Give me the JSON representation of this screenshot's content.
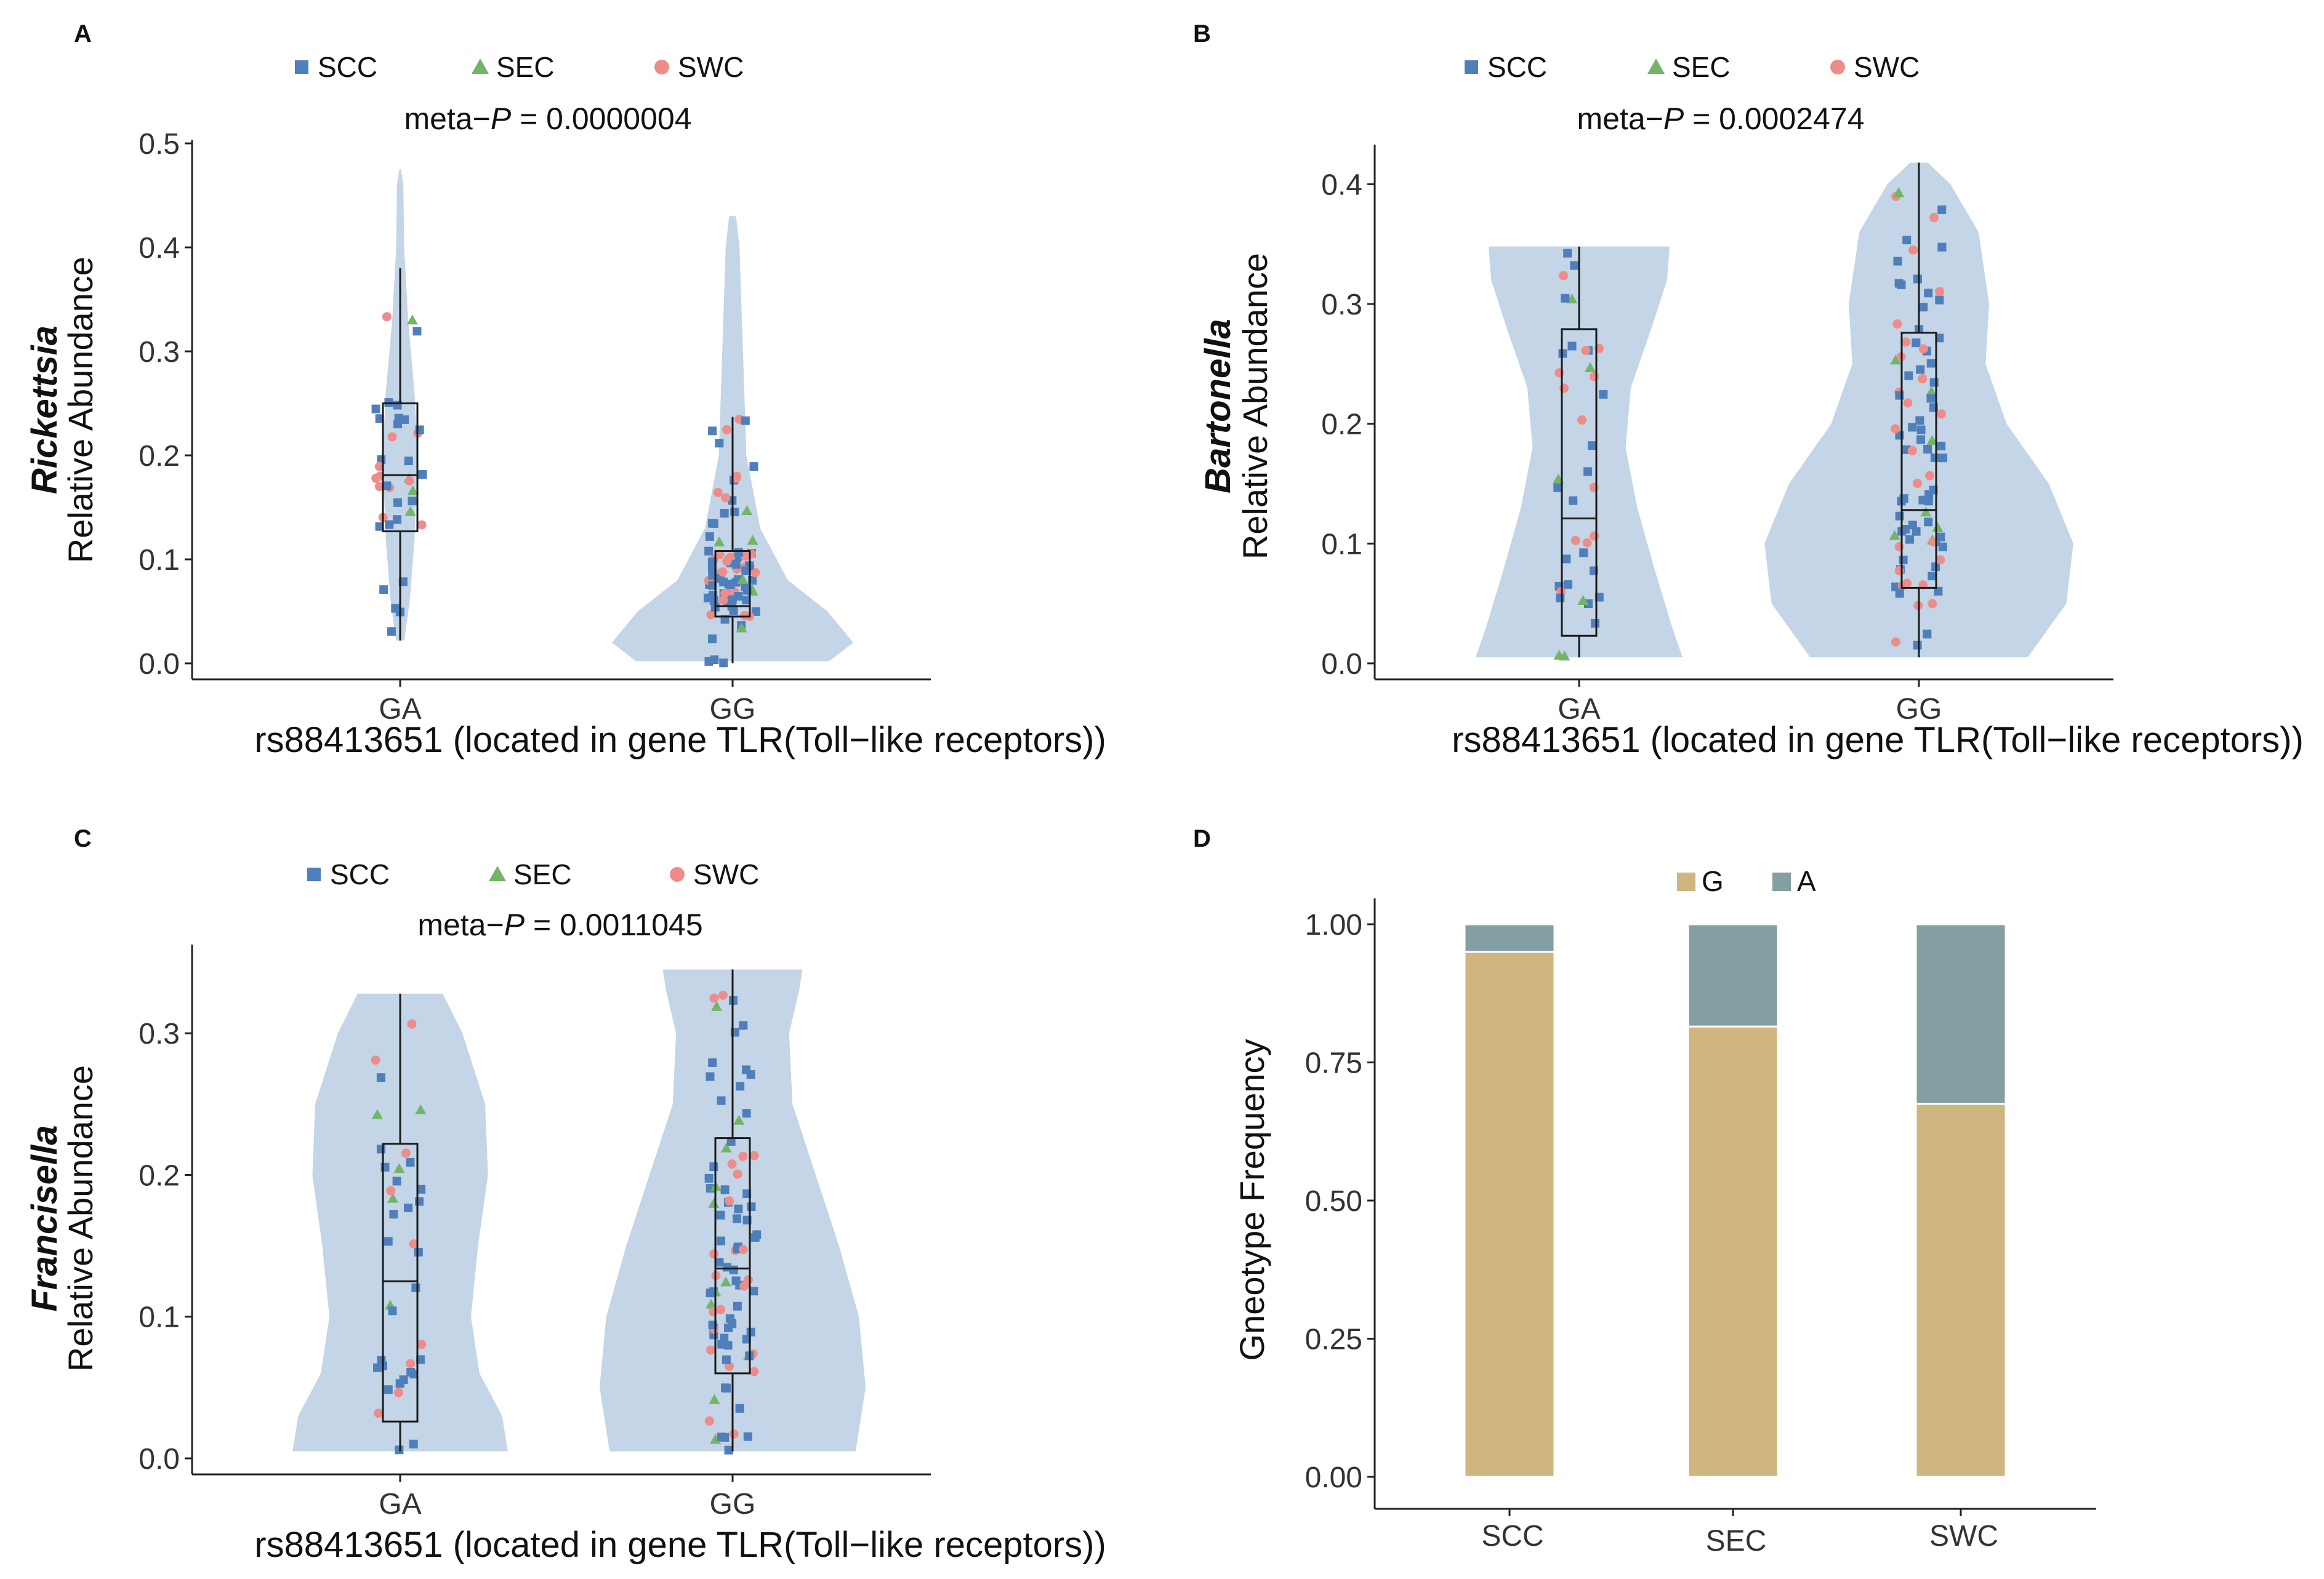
{
  "chart_data": [
    {
      "panel": "A",
      "type": "violin",
      "title_prefix": "meta−",
      "title_italic": "P",
      "title_suffix": " = 0.0000004",
      "ylabel_genus": "Rickettsia",
      "ylabel": "Relative Abundance",
      "xlabel": "rs88413651 (located in gene TLR(Toll−like receptors))",
      "categories": [
        "GA",
        "GG"
      ],
      "ylim": [
        0,
        0.5
      ],
      "yticks": [
        0.0,
        0.1,
        0.2,
        0.3,
        0.4,
        0.5
      ],
      "ytick_labels": [
        "0.0",
        "0.1",
        "0.2",
        "0.3",
        "0.4",
        "0.5"
      ],
      "legend": [
        {
          "label": "SCC",
          "shape": "square",
          "color": "#4f7fbb"
        },
        {
          "label": "SEC",
          "shape": "triangle",
          "color": "#72b566"
        },
        {
          "label": "SWC",
          "shape": "circle",
          "color": "#ee8c8a"
        }
      ],
      "boxes": [
        {
          "category": "GA",
          "min": 0.022,
          "q1": 0.127,
          "median": 0.181,
          "q3": 0.25,
          "max": 0.38
        },
        {
          "category": "GG",
          "min": 0.0,
          "q1": 0.045,
          "median": 0.055,
          "q3": 0.108,
          "max": 0.237
        }
      ],
      "violins": [
        {
          "category": "GA",
          "ymin": 0.022,
          "ymax": 0.475,
          "profile": [
            [
              0.022,
              0.05
            ],
            [
              0.06,
              0.12
            ],
            [
              0.12,
              0.18
            ],
            [
              0.2,
              0.22
            ],
            [
              0.26,
              0.18
            ],
            [
              0.33,
              0.1
            ],
            [
              0.4,
              0.05
            ],
            [
              0.46,
              0.04
            ],
            [
              0.475,
              0.01
            ]
          ]
        },
        {
          "category": "GG",
          "ymin": 0.002,
          "ymax": 0.43,
          "profile": [
            [
              0.002,
              0.56
            ],
            [
              0.02,
              0.7
            ],
            [
              0.05,
              0.55
            ],
            [
              0.08,
              0.32
            ],
            [
              0.13,
              0.16
            ],
            [
              0.2,
              0.08
            ],
            [
              0.3,
              0.06
            ],
            [
              0.4,
              0.04
            ],
            [
              0.43,
              0.02
            ]
          ]
        }
      ]
    },
    {
      "panel": "B",
      "type": "violin",
      "title_prefix": "meta−",
      "title_italic": "P",
      "title_suffix": " = 0.0002474",
      "ylabel_genus": "Bartonella",
      "ylabel": "Relative Abundance",
      "xlabel": "rs88413651 (located in gene TLR(Toll−like receptors))",
      "categories": [
        "GA",
        "GG"
      ],
      "ylim": [
        0,
        0.43
      ],
      "yticks": [
        0.0,
        0.1,
        0.2,
        0.3,
        0.4
      ],
      "ytick_labels": [
        "0.0",
        "0.1",
        "0.2",
        "0.3",
        "0.4"
      ],
      "legend": [
        {
          "label": "SCC",
          "shape": "square",
          "color": "#4f7fbb"
        },
        {
          "label": "SEC",
          "shape": "triangle",
          "color": "#72b566"
        },
        {
          "label": "SWC",
          "shape": "circle",
          "color": "#ee8c8a"
        }
      ],
      "boxes": [
        {
          "category": "GA",
          "min": 0.005,
          "q1": 0.023,
          "median": 0.121,
          "q3": 0.279,
          "max": 0.348
        },
        {
          "category": "GG",
          "min": 0.005,
          "q1": 0.063,
          "median": 0.128,
          "q3": 0.276,
          "max": 0.418
        }
      ],
      "violins": [
        {
          "category": "GA",
          "ymin": 0.005,
          "ymax": 0.348,
          "profile": [
            [
              0.005,
              0.8
            ],
            [
              0.03,
              0.72
            ],
            [
              0.08,
              0.58
            ],
            [
              0.13,
              0.45
            ],
            [
              0.18,
              0.36
            ],
            [
              0.23,
              0.4
            ],
            [
              0.28,
              0.56
            ],
            [
              0.32,
              0.68
            ],
            [
              0.348,
              0.7
            ]
          ]
        },
        {
          "category": "GG",
          "ymin": 0.005,
          "ymax": 0.418,
          "profile": [
            [
              0.005,
              0.62
            ],
            [
              0.05,
              0.84
            ],
            [
              0.1,
              0.88
            ],
            [
              0.15,
              0.74
            ],
            [
              0.2,
              0.5
            ],
            [
              0.25,
              0.38
            ],
            [
              0.3,
              0.4
            ],
            [
              0.36,
              0.34
            ],
            [
              0.4,
              0.18
            ],
            [
              0.418,
              0.05
            ]
          ]
        }
      ]
    },
    {
      "panel": "C",
      "type": "violin",
      "title_prefix": "meta−",
      "title_italic": "P",
      "title_suffix": " = 0.0011045",
      "ylabel_genus": "Francisella",
      "ylabel": "Relative Abundance",
      "xlabel": "rs88413651 (located in gene TLR(Toll−like receptors))",
      "categories": [
        "GA",
        "GG"
      ],
      "ylim": [
        0,
        0.36
      ],
      "yticks": [
        0.0,
        0.1,
        0.2,
        0.3
      ],
      "ytick_labels": [
        "0.0",
        "0.1",
        "0.2",
        "0.3"
      ],
      "legend": [
        {
          "label": "SCC",
          "shape": "square",
          "color": "#4f7fbb"
        },
        {
          "label": "SEC",
          "shape": "triangle",
          "color": "#72b566"
        },
        {
          "label": "SWC",
          "shape": "circle",
          "color": "#ee8c8a"
        }
      ],
      "boxes": [
        {
          "category": "GA",
          "min": 0.005,
          "q1": 0.026,
          "median": 0.125,
          "q3": 0.222,
          "max": 0.328
        },
        {
          "category": "GG",
          "min": 0.005,
          "q1": 0.06,
          "median": 0.134,
          "q3": 0.226,
          "max": 0.345
        }
      ],
      "violins": [
        {
          "category": "GA",
          "ymin": 0.005,
          "ymax": 0.328,
          "profile": [
            [
              0.005,
              0.76
            ],
            [
              0.03,
              0.72
            ],
            [
              0.06,
              0.56
            ],
            [
              0.1,
              0.5
            ],
            [
              0.15,
              0.55
            ],
            [
              0.2,
              0.62
            ],
            [
              0.25,
              0.6
            ],
            [
              0.3,
              0.44
            ],
            [
              0.328,
              0.3
            ]
          ]
        },
        {
          "category": "GG",
          "ymin": 0.005,
          "ymax": 0.345,
          "profile": [
            [
              0.005,
              0.74
            ],
            [
              0.05,
              0.8
            ],
            [
              0.1,
              0.76
            ],
            [
              0.15,
              0.64
            ],
            [
              0.2,
              0.5
            ],
            [
              0.25,
              0.36
            ],
            [
              0.3,
              0.34
            ],
            [
              0.33,
              0.4
            ],
            [
              0.345,
              0.42
            ]
          ]
        }
      ]
    },
    {
      "panel": "D",
      "type": "bar",
      "stacked": true,
      "ylabel": "Gneotype Frequency",
      "categories": [
        "SCC",
        "SEC",
        "SWC"
      ],
      "ylim": [
        0,
        1.05
      ],
      "yticks": [
        0.0,
        0.25,
        0.5,
        0.75,
        1.0
      ],
      "ytick_labels": [
        "0.00",
        "0.25",
        "0.50",
        "0.75",
        "1.00"
      ],
      "series": [
        {
          "name": "G",
          "color": "#cfb57f",
          "values": [
            0.95,
            0.815,
            0.675
          ]
        },
        {
          "name": "A",
          "color": "#839fa3",
          "values": [
            0.05,
            0.185,
            0.325
          ]
        }
      ],
      "legend": [
        {
          "label": "G",
          "color": "#cfb57f"
        },
        {
          "label": "A",
          "color": "#839fa3"
        }
      ]
    }
  ]
}
